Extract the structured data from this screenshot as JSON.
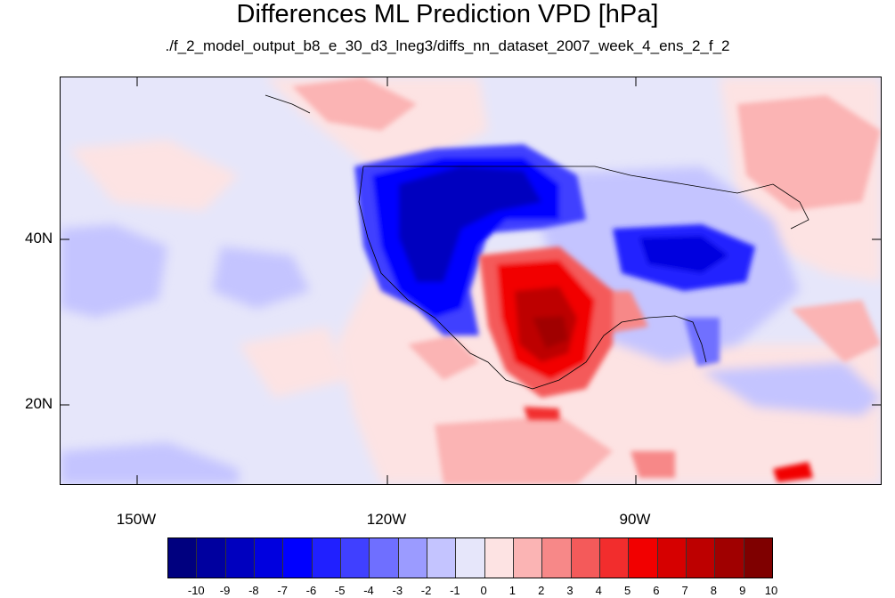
{
  "title": "Differences ML Prediction VPD [hPa]",
  "subtitle": "./f_2_model_output_b8_e_30_d3_lneg3/diffs_nn_dataset_2007_week_4_ens_2_f_2",
  "lat_labels": [
    "40N",
    "20N"
  ],
  "lon_labels": [
    "150W",
    "120W",
    "90W"
  ],
  "colorbar": {
    "labels": [
      "-10",
      "-9",
      "-8",
      "-7",
      "-6",
      "-5",
      "-4",
      "-3",
      "-2",
      "-1",
      "0",
      "1",
      "2",
      "3",
      "4",
      "5",
      "6",
      "7",
      "8",
      "9",
      "10"
    ],
    "colors": [
      "#00007f",
      "#00009f",
      "#0000bf",
      "#0000df",
      "#0000ff",
      "#2020ff",
      "#4040ff",
      "#6f6fff",
      "#9b9bff",
      "#c4c4ff",
      "#e6e6fa",
      "#fde3e3",
      "#fbb4b4",
      "#f78888",
      "#f45a5a",
      "#f22d2d",
      "#f20000",
      "#d60000",
      "#bd0000",
      "#a00000",
      "#7f0000"
    ]
  }
}
